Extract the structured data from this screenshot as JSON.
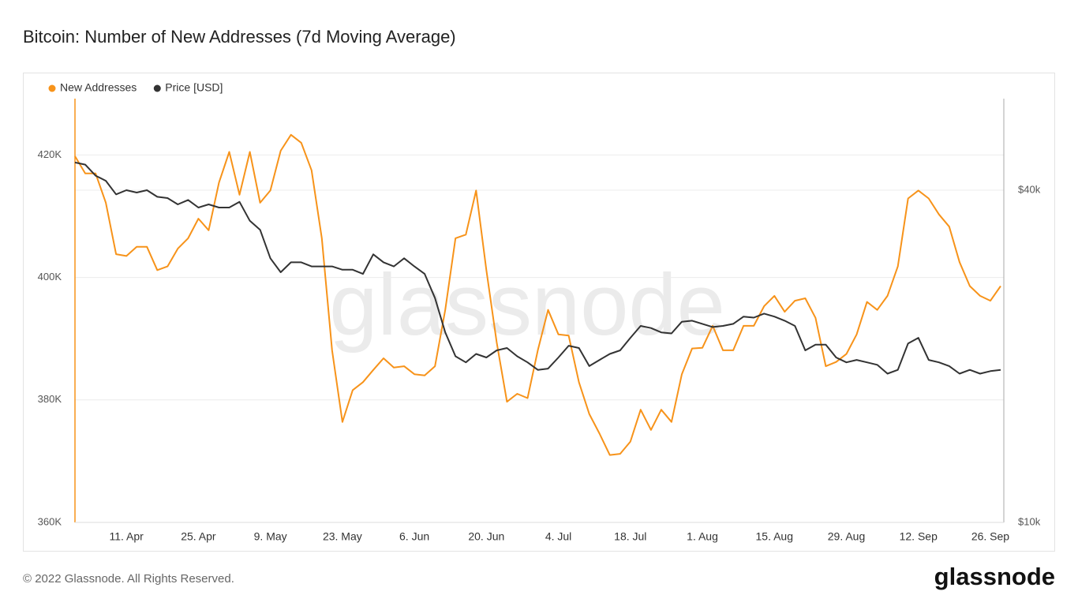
{
  "chart_data": {
    "type": "line",
    "title": "Bitcoin: Number of New Addresses (7d Moving Average)",
    "watermark": "glassnode",
    "categories": [
      null,
      null,
      null,
      null,
      null,
      "11. Apr",
      null,
      null,
      null,
      null,
      null,
      null,
      "25. Apr",
      null,
      null,
      null,
      null,
      null,
      null,
      "9. May",
      null,
      null,
      null,
      null,
      null,
      null,
      "23. May",
      null,
      null,
      null,
      null,
      null,
      null,
      "6. Jun",
      null,
      null,
      null,
      null,
      null,
      null,
      "20. Jun",
      null,
      null,
      null,
      null,
      null,
      null,
      "4. Jul",
      null,
      null,
      null,
      null,
      null,
      null,
      "18. Jul",
      null,
      null,
      null,
      null,
      null,
      null,
      "1. Aug",
      null,
      null,
      null,
      null,
      null,
      null,
      "15. Aug",
      null,
      null,
      null,
      null,
      null,
      null,
      "29. Aug",
      null,
      null,
      null,
      null,
      null,
      null,
      "12. Sep",
      null,
      null,
      null,
      null,
      null,
      null,
      "26. Sep",
      null
    ],
    "series": [
      {
        "name": "New Addresses",
        "color": "#f7931a",
        "values": [
          419800,
          417000,
          417000,
          412200,
          403800,
          403500,
          405000,
          405000,
          401200,
          401800,
          404700,
          406400,
          409600,
          407700,
          415500,
          420500,
          413500,
          420500,
          412200,
          414200,
          420700,
          423300,
          422000,
          417500,
          406400,
          388100,
          376400,
          381600,
          382900,
          384900,
          386800,
          385300,
          385500,
          384200,
          384000,
          385500,
          394700,
          406400,
          407000,
          414200,
          401200,
          389400,
          379700,
          381000,
          380300,
          388100,
          394700,
          390700,
          390500,
          382900,
          377700,
          374500,
          371000,
          371200,
          373200,
          378400,
          375100,
          378400,
          376400,
          384200,
          388400,
          388500,
          392100,
          388100,
          388100,
          392100,
          392100,
          395300,
          397000,
          394400,
          396200,
          396600,
          393400,
          385500,
          386200,
          387500,
          390700,
          396000,
          394700,
          397000,
          401800,
          412900,
          414200,
          412900,
          410300,
          408300,
          402500,
          398600,
          397000,
          396200,
          398600
        ]
      },
      {
        "name": "Price [USD]",
        "color": "#333333",
        "axis": "y2",
        "values": [
          44900,
          44500,
          42500,
          41600,
          39300,
          40000,
          39600,
          40000,
          38900,
          38700,
          37700,
          38400,
          37200,
          37700,
          37200,
          37200,
          38100,
          35200,
          33900,
          30100,
          28400,
          29600,
          29600,
          29100,
          29100,
          29100,
          28700,
          28700,
          28200,
          30600,
          29600,
          29100,
          30100,
          29100,
          28200,
          25500,
          22100,
          20000,
          19500,
          20200,
          19900,
          20500,
          20700,
          20000,
          19500,
          18900,
          19000,
          19900,
          20900,
          20700,
          19200,
          19700,
          20200,
          20500,
          21600,
          22700,
          22500,
          22100,
          22000,
          23100,
          23200,
          22900,
          22600,
          22700,
          22900,
          23600,
          23500,
          23900,
          23600,
          23200,
          22700,
          20500,
          21000,
          21000,
          19900,
          19500,
          19700,
          19500,
          19300,
          18600,
          18900,
          21100,
          21600,
          19700,
          19500,
          19200,
          18600,
          18900,
          18600,
          18800,
          18900
        ]
      }
    ],
    "ylim": [
      360000,
      429200
    ],
    "yticks": [
      {
        "value": 360000,
        "label": "360K"
      },
      {
        "value": 380000,
        "label": "380K"
      },
      {
        "value": 400000,
        "label": "400K"
      },
      {
        "value": 420000,
        "label": "420K"
      }
    ],
    "y2lim": [
      10000,
      58600
    ],
    "y2scale": "log",
    "y2ticks": [
      {
        "value": 10000,
        "label": "$10k"
      },
      {
        "value": 40000,
        "label": "$40k"
      }
    ],
    "grid": true
  },
  "footer": {
    "copyright": "© 2022 Glassnode. All Rights Reserved.",
    "logo": "glassnode"
  }
}
